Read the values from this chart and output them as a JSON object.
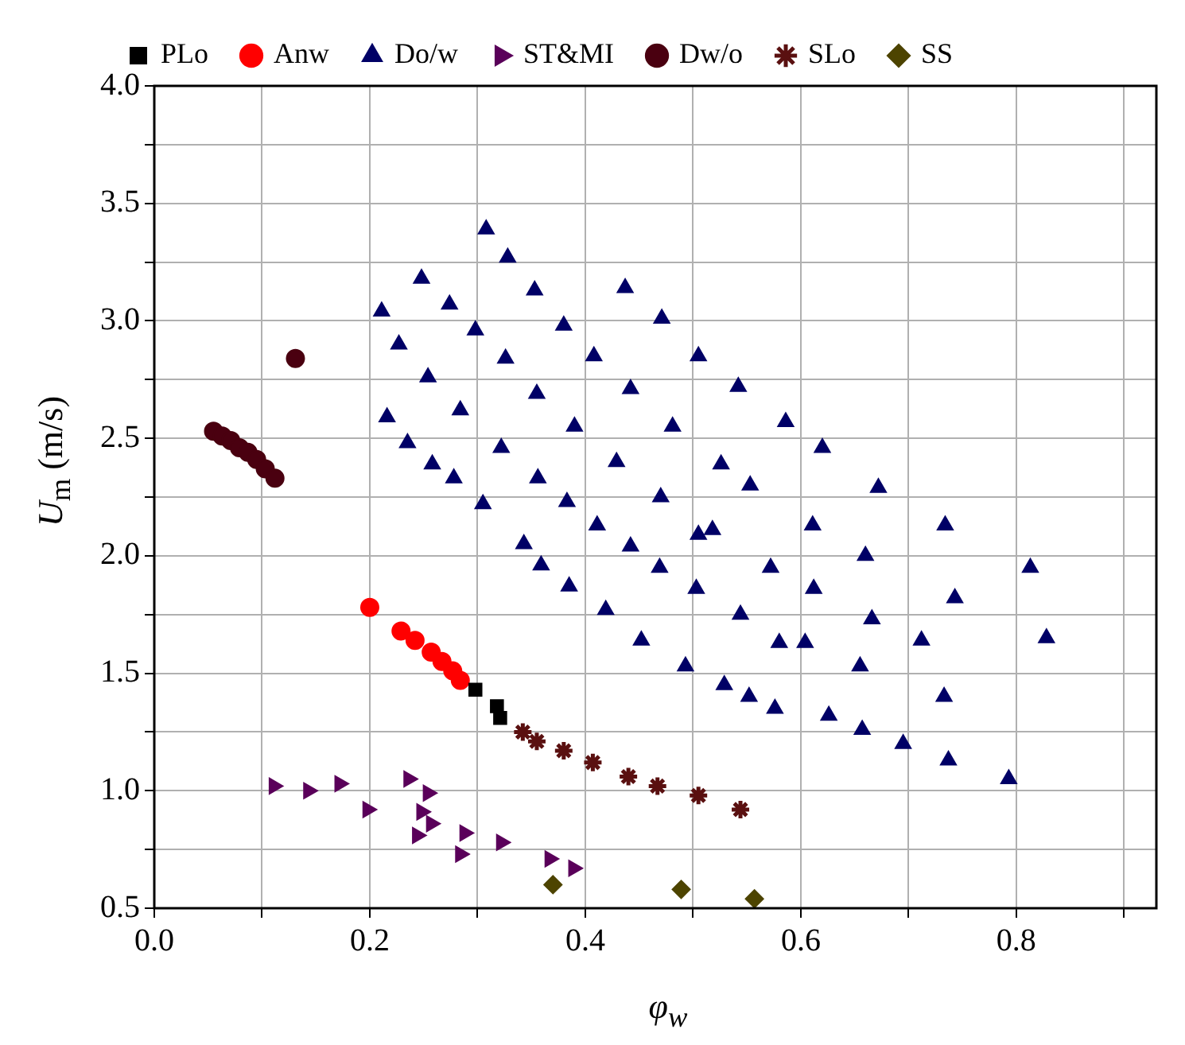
{
  "chart_data": {
    "type": "scatter",
    "xlabel": "φ$_{w}$",
    "ylabel": "U$_{m}$ (m/s)",
    "xlim": [
      0,
      0.93
    ],
    "ylim": [
      0.5,
      4.0
    ],
    "xticks": [
      {
        "value": 0,
        "label": "0.0"
      },
      {
        "value": 0.1,
        "label": null
      },
      0.2,
      {
        "value": 0.3,
        "label": null
      },
      0.4,
      {
        "value": 0.5,
        "label": null
      },
      0.6,
      {
        "value": 0.7,
        "label": null
      },
      0.8,
      {
        "value": 0.9,
        "label": null
      }
    ],
    "yticks": [
      0.5,
      {
        "value": 0.75,
        "label": null
      },
      {
        "value": 1,
        "label": "1.0"
      },
      {
        "value": 1.25,
        "label": null
      },
      1.5,
      {
        "value": 1.75,
        "label": null
      },
      {
        "value": 2,
        "label": "2.0"
      },
      {
        "value": 2.25,
        "label": null
      },
      2.5,
      {
        "value": 2.75,
        "label": null
      },
      {
        "value": 3,
        "label": "3.0"
      },
      {
        "value": 3.25,
        "label": null
      },
      3.5,
      {
        "value": 3.75,
        "label": null
      },
      {
        "value": 4,
        "label": "4.0"
      }
    ],
    "grid": true,
    "legend": "top",
    "series": [
      {
        "name": "PLo",
        "color": "#000000",
        "marker": "square",
        "x": [
          0.298,
          0.318,
          0.321
        ],
        "values": [
          1.43,
          1.36,
          1.31
        ]
      },
      {
        "name": "Anw",
        "color": "#ff0000",
        "marker": "circle",
        "x": [
          0.2,
          0.229,
          0.242,
          0.257,
          0.267,
          0.277,
          0.284
        ],
        "values": [
          1.78,
          1.68,
          1.64,
          1.59,
          1.55,
          1.51,
          1.47
        ]
      },
      {
        "name": "Do/w",
        "color": "#000066",
        "marker": "triangle",
        "x": [
          0.308,
          0.328,
          0.248,
          0.353,
          0.437,
          0.211,
          0.274,
          0.298,
          0.38,
          0.471,
          0.227,
          0.326,
          0.408,
          0.505,
          0.254,
          0.355,
          0.442,
          0.216,
          0.284,
          0.39,
          0.481,
          0.235,
          0.322,
          0.429,
          0.258,
          0.278,
          0.356,
          0.47,
          0.305,
          0.383,
          0.411,
          0.505,
          0.343,
          0.359,
          0.442,
          0.469,
          0.385,
          0.503,
          0.542,
          0.586,
          0.62,
          0.526,
          0.553,
          0.672,
          0.518,
          0.611,
          0.734,
          0.572,
          0.66,
          0.813,
          0.612,
          0.743,
          0.419,
          0.544,
          0.666,
          0.452,
          0.58,
          0.604,
          0.712,
          0.828,
          0.493,
          0.655,
          0.529,
          0.552,
          0.576,
          0.626,
          0.733,
          0.657,
          0.695,
          0.737,
          0.793
        ],
        "values": [
          3.39,
          3.27,
          3.18,
          3.13,
          3.14,
          3.04,
          3.07,
          2.96,
          2.98,
          3.01,
          2.9,
          2.84,
          2.85,
          2.85,
          2.76,
          2.69,
          2.71,
          2.59,
          2.62,
          2.55,
          2.55,
          2.48,
          2.46,
          2.4,
          2.39,
          2.33,
          2.33,
          2.25,
          2.22,
          2.23,
          2.13,
          2.09,
          2.05,
          1.96,
          2.04,
          1.95,
          1.87,
          1.86,
          2.72,
          2.57,
          2.46,
          2.39,
          2.3,
          2.29,
          2.11,
          2.13,
          2.13,
          1.95,
          2.0,
          1.95,
          1.86,
          1.82,
          1.77,
          1.75,
          1.73,
          1.64,
          1.63,
          1.63,
          1.64,
          1.65,
          1.53,
          1.53,
          1.45,
          1.4,
          1.35,
          1.32,
          1.4,
          1.26,
          1.2,
          1.13,
          1.05
        ]
      },
      {
        "name": "ST&MI",
        "color": "#5a005a",
        "marker": "triangle-right",
        "x": [
          0.111,
          0.143,
          0.172,
          0.198,
          0.236,
          0.254,
          0.248,
          0.257,
          0.244,
          0.288,
          0.284,
          0.322,
          0.367,
          0.389
        ],
        "values": [
          1.02,
          1.0,
          1.03,
          0.92,
          1.05,
          0.99,
          0.91,
          0.86,
          0.81,
          0.82,
          0.73,
          0.78,
          0.71,
          0.67
        ]
      },
      {
        "name": "Dw/o",
        "color": "#4a0010",
        "marker": "circle",
        "x": [
          0.131,
          0.055,
          0.063,
          0.071,
          0.079,
          0.087,
          0.095,
          0.103,
          0.112
        ],
        "values": [
          2.84,
          2.53,
          2.51,
          2.49,
          2.46,
          2.44,
          2.41,
          2.37,
          2.33
        ]
      },
      {
        "name": "SLo",
        "color": "#5a1010",
        "marker": "cross",
        "x": [
          0.342,
          0.355,
          0.38,
          0.407,
          0.44,
          0.467,
          0.505,
          0.544
        ],
        "values": [
          1.25,
          1.21,
          1.17,
          1.12,
          1.06,
          1.02,
          0.98,
          0.92
        ]
      },
      {
        "name": "SS",
        "color": "#4d4400",
        "marker": "diamond",
        "x": [
          0.37,
          0.489,
          0.557
        ],
        "values": [
          0.6,
          0.58,
          0.54
        ]
      }
    ]
  }
}
